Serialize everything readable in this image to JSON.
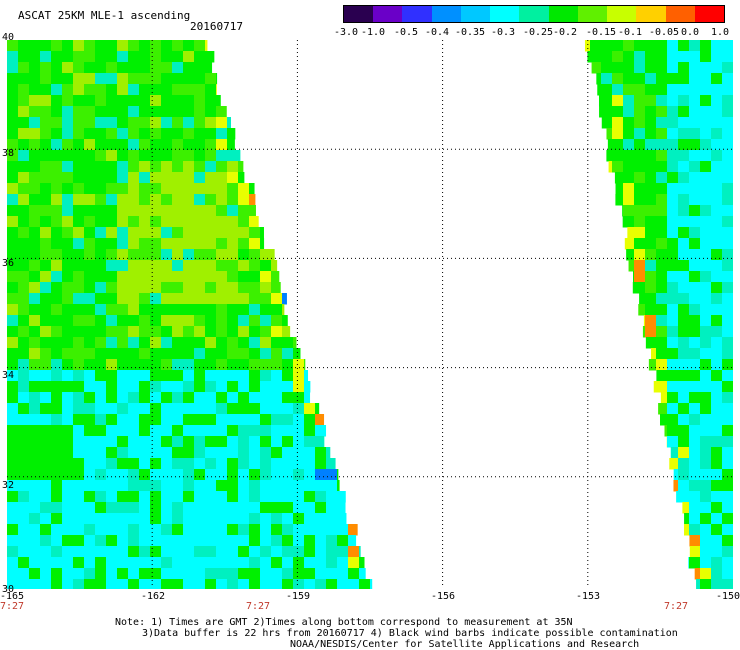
{
  "title": "ASCAT 25KM MLE-1 ascending",
  "date": "20160717",
  "colorbar": {
    "labels": [
      "-3.0",
      "-1.0",
      "-0.5",
      "-0.4",
      "-0.35",
      "-0.3",
      "-0.25",
      "-0.2",
      "-0.15",
      "-0.1",
      "-0.05",
      "0.0",
      "1.0"
    ],
    "colors": [
      "#2a0050",
      "#6a00c8",
      "#3030ff",
      "#0090ff",
      "#00c8ff",
      "#00ffff",
      "#00f0a0",
      "#00e800",
      "#60f000",
      "#c8ff00",
      "#ffd000",
      "#ff6000",
      "#ff0000"
    ]
  },
  "map": {
    "lat_labels": [
      "40",
      "38",
      "36",
      "34",
      "32",
      "30"
    ],
    "lon_labels": [
      "-165",
      "-162",
      "-159",
      "-156",
      "-153",
      "-150"
    ],
    "lat_range": [
      30,
      40
    ],
    "lon_range": [
      -165,
      -150
    ],
    "grid": true,
    "time_labels": [
      "7:27",
      "7:27",
      "7:27"
    ],
    "swaths": [
      {
        "name": "west-swath",
        "dominant_value": "-0.15",
        "note_value": "-0.25"
      },
      {
        "name": "east-swath",
        "dominant_value": "-0.2",
        "note_value": "-0.15"
      }
    ]
  },
  "notes": {
    "line1": "Note: 1) Times are GMT 2)Times along bottom correspond to measurement at 35N",
    "line2": "3)Data buffer is 22 hrs from 20160717 4) Black wind barbs indicate possible contamination",
    "line3": "NOAA/NESDIS/Center for Satellite Applications and Research"
  }
}
